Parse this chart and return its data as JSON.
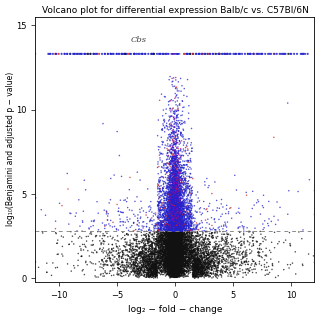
{
  "title": "Volcano plot for differential expression Balb/c vs. C57Bl/6N",
  "xlabel": "log₂ − fold − change",
  "ylabel": "log₁₀(Benjamini and adjusted p − value)",
  "xlim": [
    -12,
    12
  ],
  "ylim": [
    -0.2,
    15.5
  ],
  "yticks": [
    0,
    5,
    10,
    15
  ],
  "xticks": [
    -10,
    -5,
    0,
    5,
    10
  ],
  "hline_y": 2.8,
  "max_y_capped": 13.3,
  "cbs_label": "Cbs",
  "cbs_x": -3.8,
  "cbs_y": 14.0,
  "n_points_total": 18000,
  "seed": 42,
  "point_size": 1.2,
  "colors": {
    "black": "#111111",
    "blue": "#2222cc",
    "red": "#cc2222",
    "magenta": "#aa00aa",
    "gray": "#888888"
  }
}
